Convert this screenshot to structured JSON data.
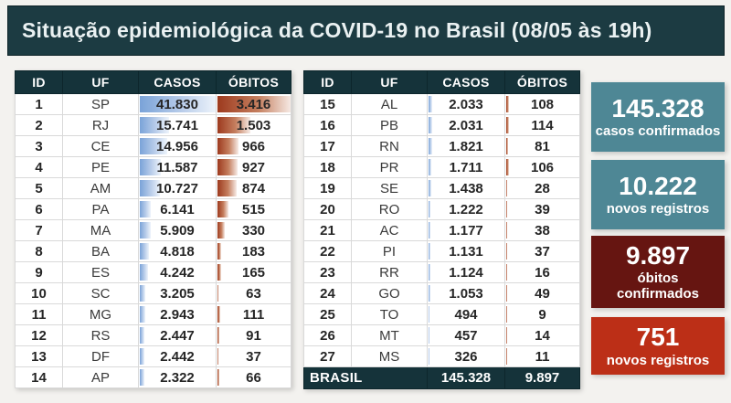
{
  "title": "Situação epidemiológica da COVID-19 no Brasil (08/05 às 19h)",
  "columns": [
    "ID",
    "UF",
    "CASOS",
    "ÓBITOS"
  ],
  "total_row": {
    "label": "BRASIL",
    "casos": "145.328",
    "obitos": "9.897"
  },
  "kpis": [
    {
      "value": "145.328",
      "label": "casos confirmados",
      "color": "#4e8795"
    },
    {
      "value": "10.222",
      "label": "novos registros",
      "color": "#4e8795"
    },
    {
      "value": "9.897",
      "label": "óbitos confirmados",
      "color": "#661511"
    },
    {
      "value": "751",
      "label": "novos registros",
      "color": "#bc2f17"
    }
  ],
  "colors": {
    "background": "#f3f2ef",
    "header_bar": "#1c3b42",
    "table_header": "#15333a",
    "total_row": "#15333a",
    "casos_bar": "#7aa3d8",
    "obitos_bar": "#9d3a1e"
  },
  "chart_data": {
    "type": "table",
    "title": "Situação epidemiológica da COVID-19 no Brasil (08/05 às 19h)",
    "columns": [
      "ID",
      "UF",
      "CASOS",
      "ÓBITOS"
    ],
    "rows": [
      [
        1,
        "SP",
        41830,
        3416
      ],
      [
        2,
        "RJ",
        15741,
        1503
      ],
      [
        3,
        "CE",
        14956,
        966
      ],
      [
        4,
        "PE",
        11587,
        927
      ],
      [
        5,
        "AM",
        10727,
        874
      ],
      [
        6,
        "PA",
        6141,
        515
      ],
      [
        7,
        "MA",
        5909,
        330
      ],
      [
        8,
        "BA",
        4818,
        183
      ],
      [
        9,
        "ES",
        4242,
        165
      ],
      [
        10,
        "SC",
        3205,
        63
      ],
      [
        11,
        "MG",
        2943,
        111
      ],
      [
        12,
        "RS",
        2447,
        91
      ],
      [
        13,
        "DF",
        2442,
        37
      ],
      [
        14,
        "AP",
        2322,
        66
      ],
      [
        15,
        "AL",
        2033,
        108
      ],
      [
        16,
        "PB",
        2031,
        114
      ],
      [
        17,
        "RN",
        1821,
        81
      ],
      [
        18,
        "PR",
        1711,
        106
      ],
      [
        19,
        "SE",
        1438,
        28
      ],
      [
        20,
        "RO",
        1222,
        39
      ],
      [
        21,
        "AC",
        1177,
        38
      ],
      [
        22,
        "PI",
        1131,
        37
      ],
      [
        23,
        "RR",
        1124,
        16
      ],
      [
        24,
        "GO",
        1053,
        49
      ],
      [
        25,
        "TO",
        494,
        9
      ],
      [
        26,
        "MT",
        457,
        14
      ],
      [
        27,
        "MS",
        326,
        11
      ]
    ],
    "total": {
      "label": "BRASIL",
      "casos": 145328,
      "obitos": 9897
    },
    "bar_scale": {
      "casos_max": 41830,
      "obitos_max": 3416
    },
    "split_after_id": 14,
    "kpis": [
      {
        "value": 145328,
        "label": "casos confirmados"
      },
      {
        "value": 10222,
        "label": "novos registros"
      },
      {
        "value": 9897,
        "label": "óbitos confirmados"
      },
      {
        "value": 751,
        "label": "novos registros"
      }
    ]
  }
}
